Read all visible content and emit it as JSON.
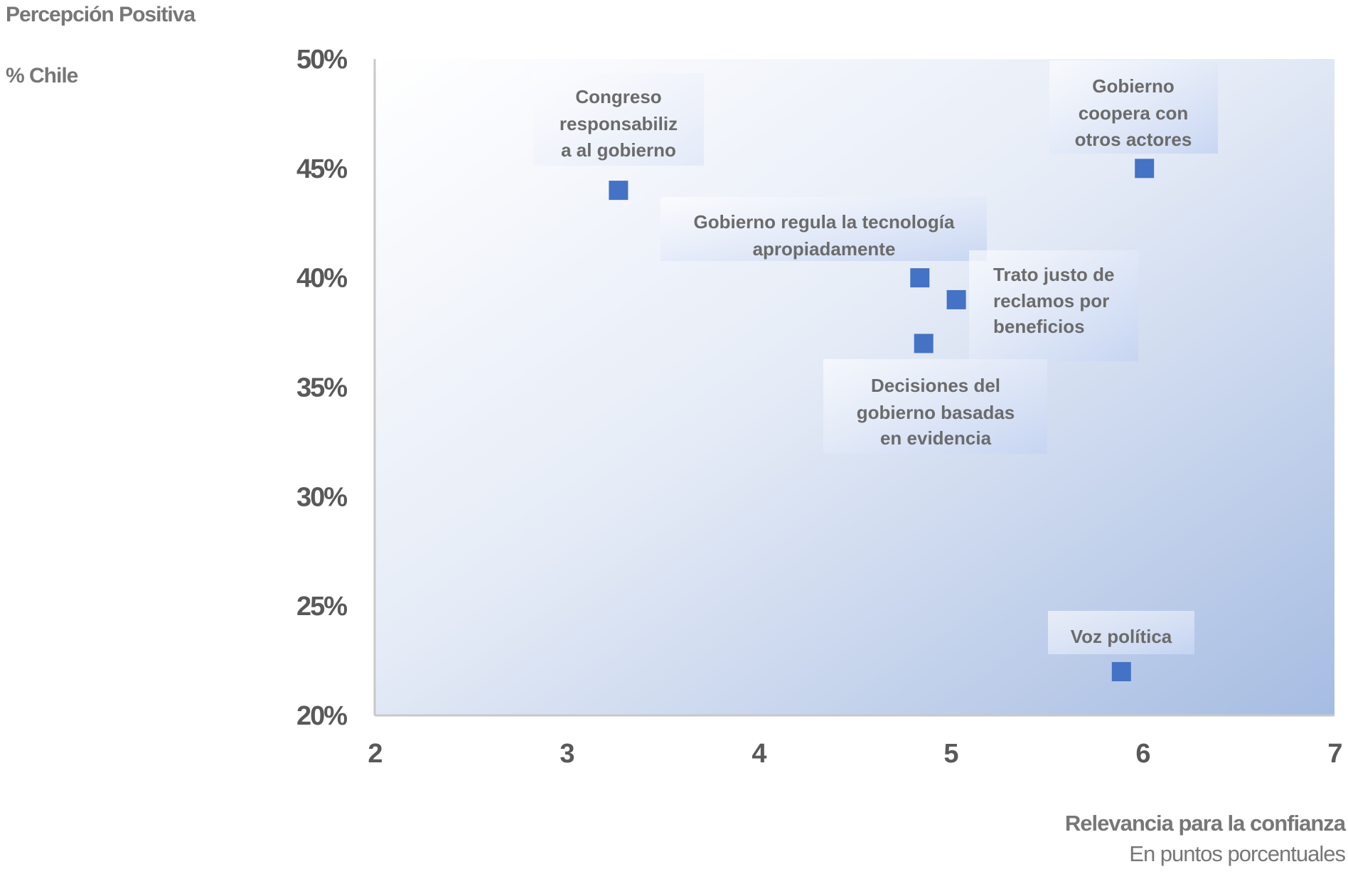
{
  "chart_data": {
    "type": "scatter",
    "title": "Percepción Positiva",
    "subtitle": "% Chile",
    "xlabel": "Relevancia para la confianza",
    "xlabel_sub": "En puntos porcentuales",
    "ylabel": "Percepción Positiva",
    "xlim": [
      2,
      7
    ],
    "ylim": [
      20,
      50
    ],
    "xticks": [
      "2",
      "3",
      "4",
      "5",
      "6",
      "7"
    ],
    "yticks": [
      "50%",
      "45%",
      "40%",
      "35%",
      "30%",
      "25%",
      "20%"
    ],
    "grid": false,
    "marker_color": "#4472c4",
    "points": [
      {
        "x": 3.27,
        "y": 44,
        "label": [
          "Congreso",
          "responsabiliz",
          "a al gobierno"
        ]
      },
      {
        "x": 6.01,
        "y": 45,
        "label": [
          "Gobierno",
          "coopera con",
          "otros actores"
        ]
      },
      {
        "x": 4.84,
        "y": 40,
        "label": [
          "Gobierno regula la tecnología",
          "apropiadamente"
        ]
      },
      {
        "x": 5.03,
        "y": 39,
        "label": [
          "Trato justo de",
          "reclamos por",
          "beneficios"
        ]
      },
      {
        "x": 4.86,
        "y": 37,
        "label": [
          "Decisiones del",
          "gobierno basadas",
          "en evidencia"
        ]
      },
      {
        "x": 5.89,
        "y": 22,
        "label": [
          "Voz política"
        ]
      }
    ]
  }
}
